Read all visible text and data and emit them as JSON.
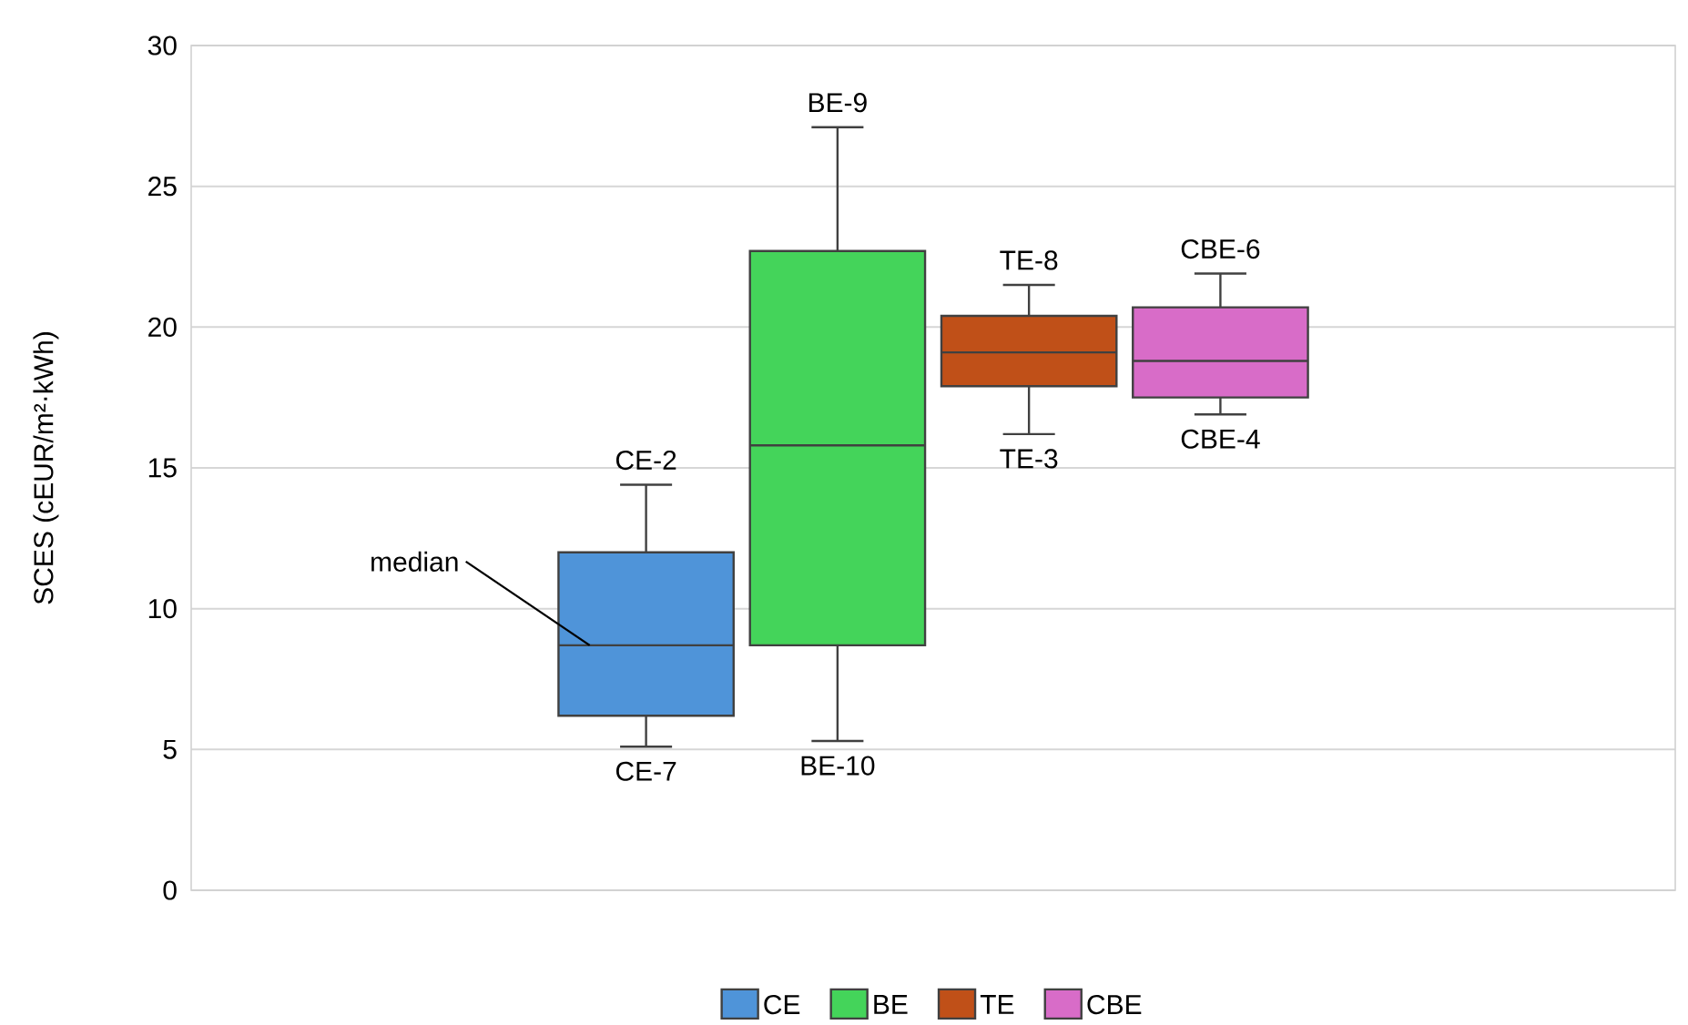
{
  "chart_data": {
    "type": "box",
    "ylabel": "SCES (cEUR/m²·kWh)",
    "categories": [
      null
    ],
    "series": [
      {
        "name": "CE",
        "color": "#4f94d9",
        "boxes": [
          {
            "low": 5.1,
            "q1": 6.2,
            "median": 8.7,
            "q3": 12.0,
            "high": 14.4
          }
        ]
      },
      {
        "name": "BE",
        "color": "#44d45a",
        "boxes": [
          {
            "low": 5.3,
            "q1": 8.7,
            "median": 15.8,
            "q3": 22.7,
            "high": 27.1
          }
        ]
      },
      {
        "name": "TE",
        "color": "#c05018",
        "boxes": [
          {
            "low": 16.2,
            "q1": 17.9,
            "median": 19.1,
            "q3": 20.4,
            "high": 21.5
          }
        ]
      },
      {
        "name": "CBE",
        "color": "#d86cc8",
        "boxes": [
          {
            "low": 16.9,
            "q1": 17.5,
            "median": 18.8,
            "q3": 20.7,
            "high": 21.9
          }
        ]
      }
    ],
    "ylim": [
      0,
      30
    ],
    "yticks": [
      0,
      5,
      10,
      15,
      20,
      25,
      30
    ],
    "grid": "y",
    "legend": "bottom",
    "annotations": [
      {
        "text": "CE-2",
        "y": 14.4
      },
      {
        "text": "CE-7",
        "y": 5.1
      },
      {
        "text": "BE-9",
        "y": 27.1
      },
      {
        "text": "BE-10",
        "y": 5.3
      },
      {
        "text": "TE-8",
        "y": 21.5
      },
      {
        "text": "TE-3",
        "y": 16.2
      },
      {
        "text": "CBE-6",
        "y": 21.9
      },
      {
        "text": "CBE-4",
        "y": 16.9
      },
      "median"
    ]
  }
}
